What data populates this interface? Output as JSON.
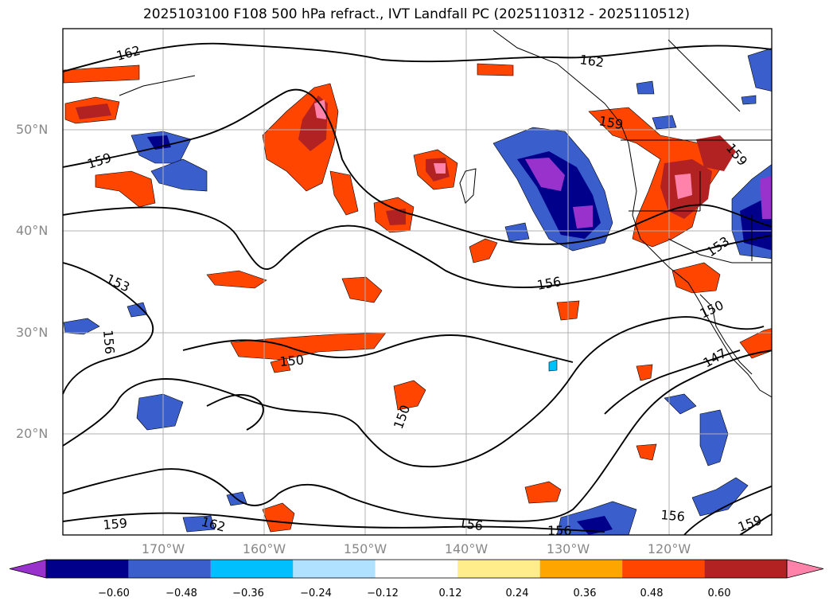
{
  "title": "2025103100 F108 500 hPa refract., IVT Landfall PC (2025110312 - 2025110512)",
  "lat_labels": [
    "50°N",
    "40°N",
    "30°N",
    "20°N"
  ],
  "lon_labels": [
    "170°W",
    "160°W",
    "150°W",
    "140°W",
    "130°W",
    "120°W"
  ],
  "contour_labels": [
    "162",
    "162",
    "159",
    "159",
    "153",
    "156",
    "153",
    "150",
    "150",
    "150",
    "147",
    "156",
    "156",
    "156",
    "159",
    "159",
    "162",
    "156",
    "159"
  ],
  "colorbar": {
    "ticks": [
      "−0.60",
      "−0.48",
      "−0.36",
      "−0.24",
      "−0.12",
      "0.12",
      "0.24",
      "0.36",
      "0.48",
      "0.60"
    ],
    "colors": [
      "#9932cc",
      "#00008b",
      "#3a5fcd",
      "#00bfff",
      "#b0e2ff",
      "#ffffff",
      "#ffec8b",
      "#ffa500",
      "#ff4500",
      "#b22222",
      "#ff82ab"
    ]
  }
}
